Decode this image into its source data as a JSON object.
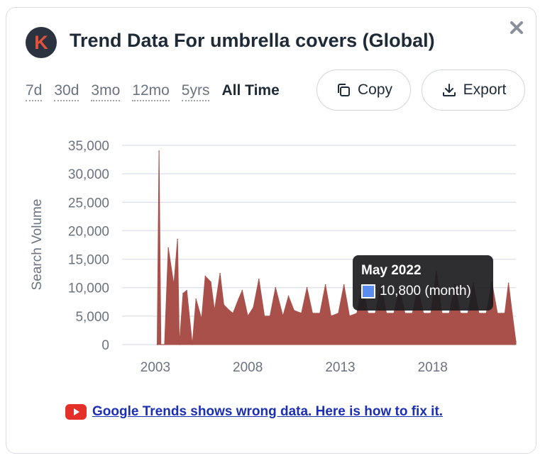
{
  "header": {
    "logo_letter": "K",
    "title": "Trend Data For umbrella covers (Global)"
  },
  "ranges": [
    "7d",
    "30d",
    "3mo",
    "12mo",
    "5yrs",
    "All Time"
  ],
  "active_range": "All Time",
  "toolbar": {
    "copy_label": "Copy",
    "export_label": "Export"
  },
  "tooltip": {
    "title": "May 2022",
    "value": "10,800 (month)",
    "swatch_color": "#5b8def"
  },
  "notice": {
    "icon": "youtube-icon",
    "link_text": "Google Trends shows wrong data. Here is how to fix it."
  },
  "colors": {
    "bar": "#a9504a",
    "accent": "#1b2fb5"
  },
  "chart_data": {
    "type": "area",
    "ylabel": "Search Volume",
    "xlabel": "",
    "ylim": [
      0,
      35000
    ],
    "yticks": [
      "35,000",
      "30,000",
      "25,000",
      "20,000",
      "15,000",
      "10,000",
      "5,000",
      "0"
    ],
    "xticks": [
      "2003",
      "2008",
      "2013",
      "2018"
    ],
    "grid": true,
    "series": [
      {
        "values_note_free": true,
        "x": [
          2003.4,
          2003.5,
          2003.6,
          2003.7,
          2003.8,
          2004.0,
          2004.3,
          2004.5,
          2004.6,
          2004.8,
          2005.0,
          2005.3,
          2005.5,
          2005.8,
          2006.0,
          2006.3,
          2006.5,
          2006.8,
          2007.0,
          2007.3,
          2007.5,
          2007.8,
          2008.0,
          2008.3,
          2008.6,
          2008.9,
          2009.2,
          2009.5,
          2009.8,
          2010.2,
          2010.5,
          2010.8,
          2011.2,
          2011.5,
          2011.8,
          2012.2,
          2012.5,
          2012.8,
          2013.2,
          2013.5,
          2013.8,
          2014.2,
          2014.5,
          2014.8,
          2015.2,
          2015.5,
          2015.8,
          2016.2,
          2016.5,
          2016.8,
          2017.2,
          2017.5,
          2017.8,
          2018.2,
          2018.5,
          2018.8,
          2019.2,
          2019.5,
          2019.8,
          2020.2,
          2020.5,
          2020.8,
          2021.2,
          2021.5,
          2021.8,
          2022.2,
          2022.4,
          2022.6,
          2022.8
        ],
        "values": [
          0,
          34000,
          0,
          0,
          0,
          17000,
          10500,
          18500,
          0,
          9000,
          9500,
          0,
          8000,
          4500,
          12000,
          11000,
          6000,
          12500,
          7000,
          6000,
          5500,
          8000,
          9500,
          5000,
          6500,
          11500,
          5000,
          5000,
          10000,
          5000,
          8500,
          6000,
          5500,
          10000,
          5500,
          5500,
          10500,
          5000,
          5500,
          10500,
          5000,
          5500,
          10500,
          5500,
          5500,
          10500,
          5500,
          5500,
          10000,
          5500,
          5500,
          10000,
          5500,
          5500,
          13000,
          5500,
          5500,
          10500,
          5500,
          5500,
          10800,
          5500,
          5500,
          11000,
          5500,
          5500,
          10800,
          5500,
          500
        ]
      }
    ]
  }
}
